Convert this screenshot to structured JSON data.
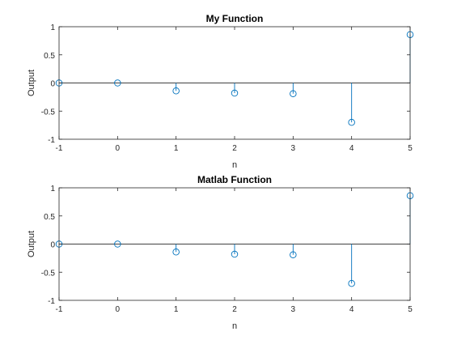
{
  "chart_data": [
    {
      "type": "stem",
      "title": "My Function",
      "xlabel": "n",
      "ylabel": "Output",
      "xlim": [
        -1,
        5
      ],
      "ylim": [
        -1,
        1
      ],
      "xticks": [
        "-1",
        "0",
        "1",
        "2",
        "3",
        "4",
        "5"
      ],
      "yticks": [
        "1",
        "0.5",
        "0",
        "-0.5",
        "-1"
      ],
      "series": [
        {
          "x": [
            -1,
            0,
            1,
            2,
            3,
            4,
            5
          ],
          "y": [
            0,
            0,
            -0.14,
            -0.18,
            -0.19,
            -0.7,
            0.86
          ]
        }
      ],
      "color": "#0072BD",
      "grid": false
    },
    {
      "type": "stem",
      "title": "Matlab Function",
      "xlabel": "n",
      "ylabel": "Output",
      "xlim": [
        -1,
        5
      ],
      "ylim": [
        -1,
        1
      ],
      "xticks": [
        "-1",
        "0",
        "1",
        "2",
        "3",
        "4",
        "5"
      ],
      "yticks": [
        "1",
        "0.5",
        "0",
        "-0.5",
        "-1"
      ],
      "series": [
        {
          "x": [
            -1,
            0,
            1,
            2,
            3,
            4,
            5
          ],
          "y": [
            0,
            0,
            -0.14,
            -0.18,
            -0.19,
            -0.7,
            0.86
          ]
        }
      ],
      "color": "#0072BD",
      "grid": false
    }
  ]
}
